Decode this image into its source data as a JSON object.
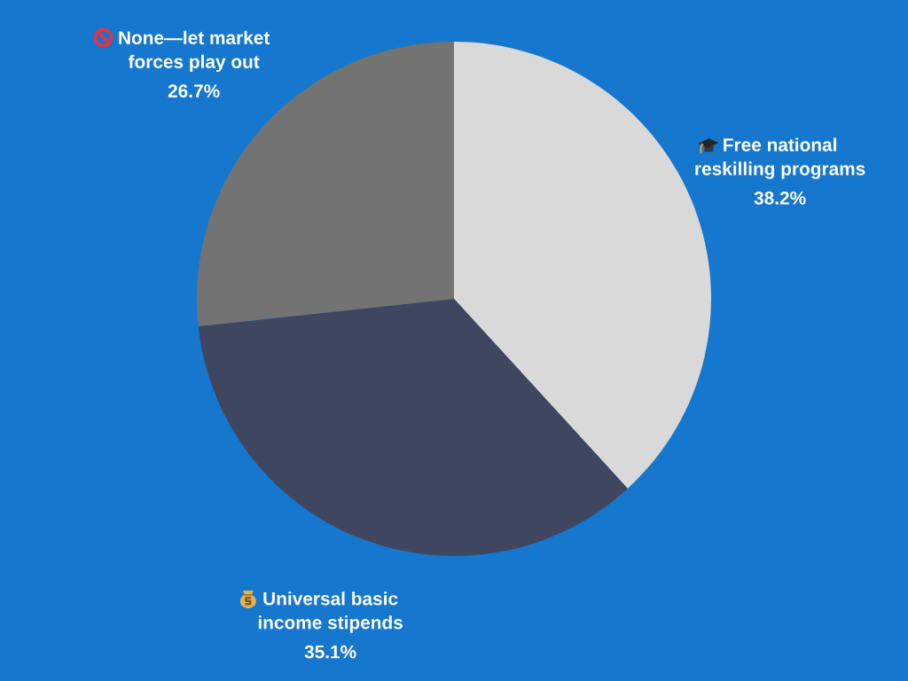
{
  "chart_data": {
    "type": "pie",
    "categories": [
      "Free national reskilling programs",
      "Universal basic income stipends",
      "None—let market forces play out"
    ],
    "values": [
      38.2,
      35.1,
      26.7
    ],
    "colors": [
      "#d9d9d9",
      "#3f4660",
      "#737373"
    ],
    "value_labels": [
      "38.2%",
      "35.1%",
      "26.7%"
    ]
  }
}
